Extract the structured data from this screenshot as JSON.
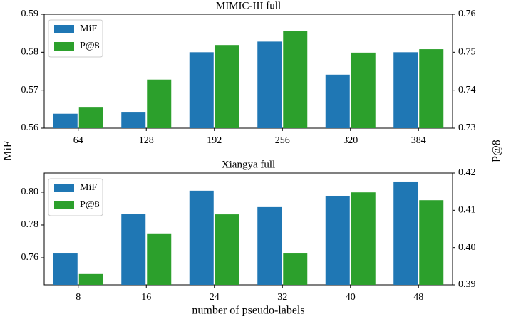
{
  "chart_data": [
    {
      "type": "bar",
      "title": "MIMIC-III full",
      "ylabel": "MiF",
      "y2label": "P@8",
      "categories": [
        "64",
        "128",
        "192",
        "256",
        "320",
        "384"
      ],
      "series": [
        {
          "name": "MiF",
          "color": "#1f77b4",
          "values": [
            0.5638,
            0.5643,
            0.58,
            0.5828,
            0.5741,
            0.58
          ]
        },
        {
          "name": "P@8",
          "color": "#2ca02c",
          "axis": "y2",
          "values": [
            0.7356,
            0.7428,
            0.7519,
            0.7556,
            0.7499,
            0.7508
          ]
        }
      ],
      "ylim": [
        0.56,
        0.59
      ],
      "yticks": [
        0.56,
        0.57,
        0.58,
        0.59
      ],
      "y2lim": [
        0.73,
        0.76
      ],
      "y2ticks": [
        0.73,
        0.74,
        0.75,
        0.76
      ],
      "legend": "upper left"
    },
    {
      "type": "bar",
      "title": "Xiangya full",
      "xlabel": "number of pseudo-labels",
      "categories": [
        "8",
        "16",
        "24",
        "32",
        "40",
        "48"
      ],
      "series": [
        {
          "name": "MiF",
          "color": "#1f77b4",
          "values": [
            0.7626,
            0.7865,
            0.8009,
            0.7909,
            0.7978,
            0.8065
          ]
        },
        {
          "name": "P@8",
          "color": "#2ca02c",
          "axis": "y2",
          "values": [
            0.3929,
            0.4038,
            0.4089,
            0.3984,
            0.4148,
            0.4127
          ]
        }
      ],
      "ylim": [
        0.7435,
        0.8117
      ],
      "yticks": [
        0.76,
        0.78,
        {
          "value": 0.8,
          "label": "0.80"
        }
      ],
      "y2lim": [
        0.39,
        0.42
      ],
      "y2ticks": [
        {
          "value": 0.39,
          "label": "0.39"
        },
        {
          "value": 0.4,
          "label": "0.40"
        },
        0.41,
        0.42
      ],
      "legend": "upper left"
    }
  ]
}
